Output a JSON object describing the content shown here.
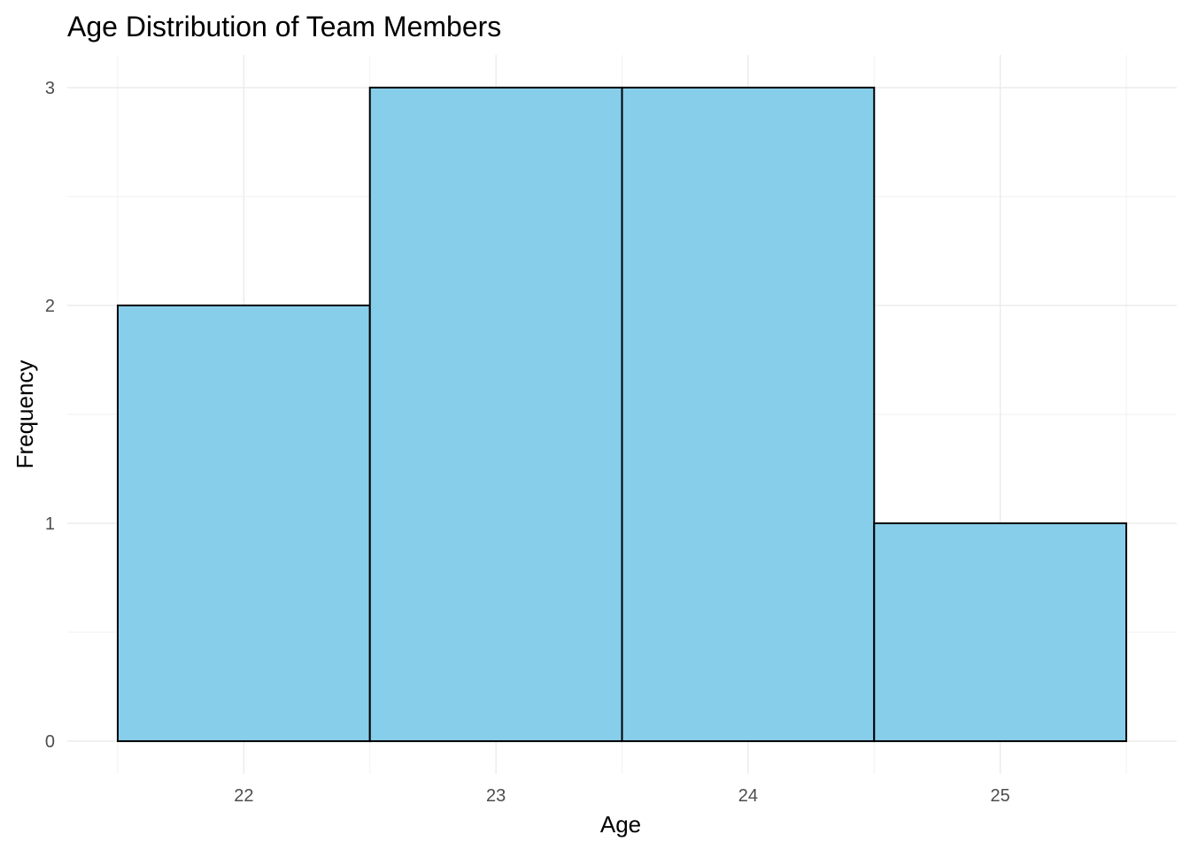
{
  "chart_data": {
    "type": "bar",
    "title": "Age Distribution of Team Members",
    "xlabel": "Age",
    "ylabel": "Frequency",
    "categories": [
      "22",
      "23",
      "24",
      "25"
    ],
    "bins": [
      {
        "from": 21.5,
        "to": 22.5,
        "count": 2
      },
      {
        "from": 22.5,
        "to": 23.5,
        "count": 3
      },
      {
        "from": 23.5,
        "to": 24.5,
        "count": 3
      },
      {
        "from": 24.5,
        "to": 25.5,
        "count": 1
      }
    ],
    "x_ticks": [
      22,
      23,
      24,
      25
    ],
    "y_ticks": [
      0,
      1,
      2,
      3
    ],
    "xlim": [
      21.3,
      25.7
    ],
    "ylim": [
      -0.15,
      3.15
    ],
    "grid": true,
    "legend": "none",
    "colors": {
      "bar_fill": "#87CEEB",
      "bar_outline": "#000000"
    }
  }
}
